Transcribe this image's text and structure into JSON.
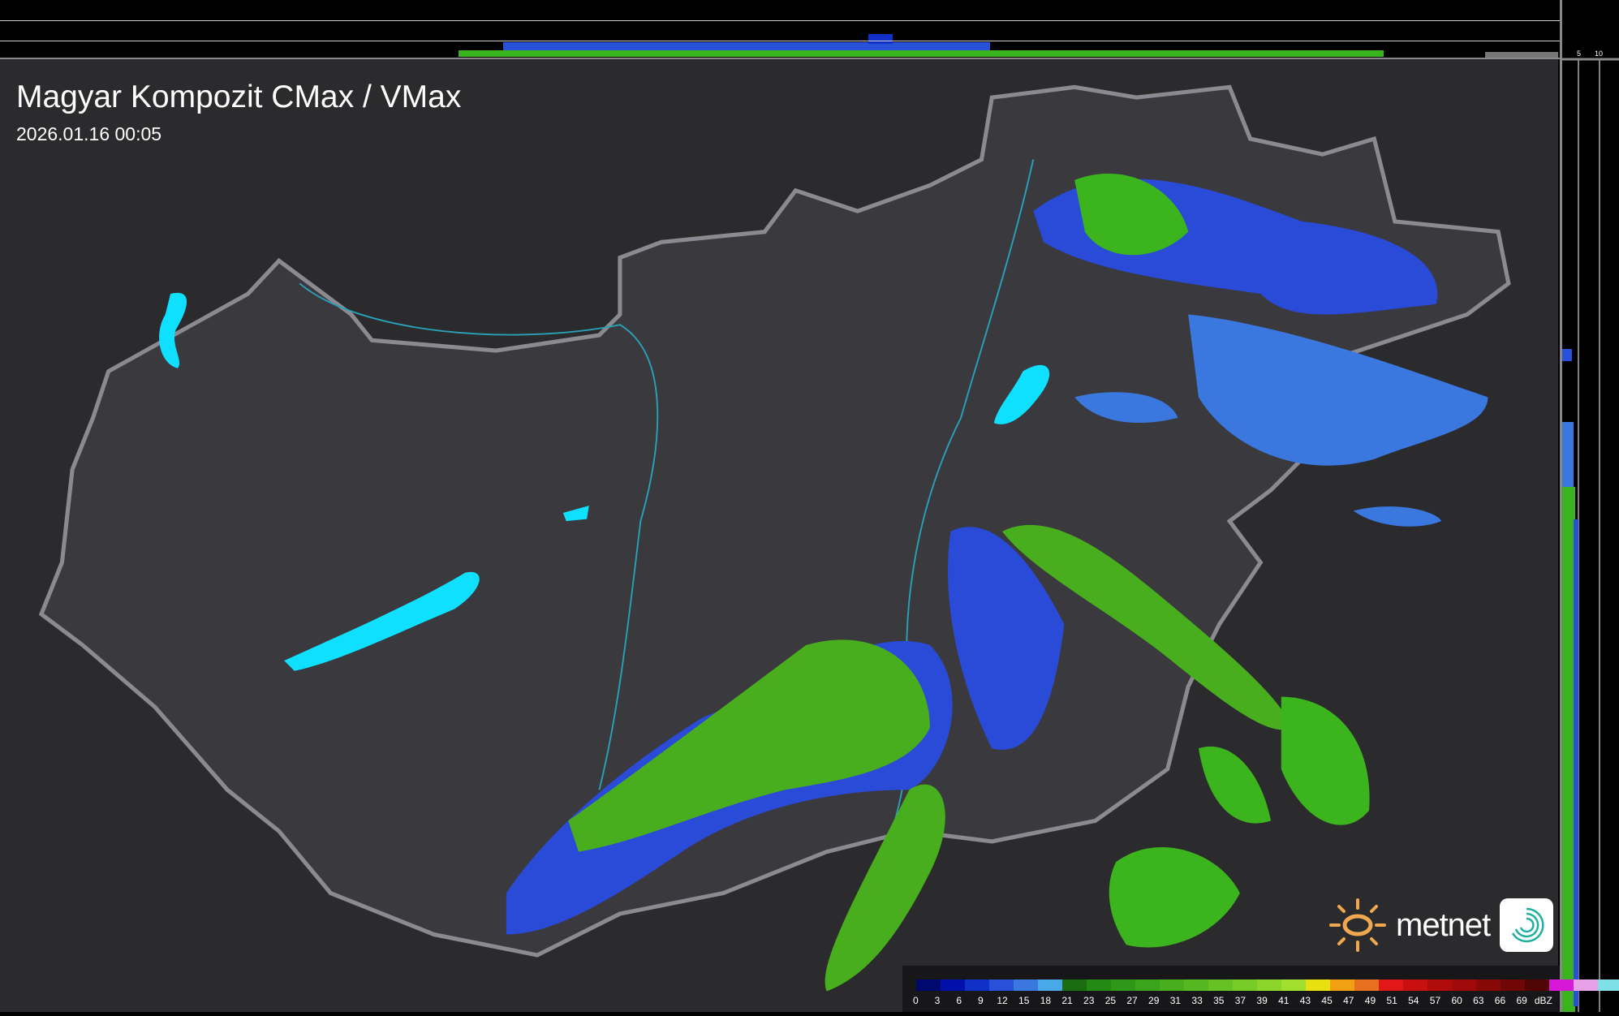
{
  "header": {
    "title": "Magyar Kompozit CMax / VMax",
    "timestamp": "2026.01.16 00:05"
  },
  "profile_ticks": {
    "top": [
      "10",
      "5"
    ],
    "right": [
      "5",
      "10"
    ]
  },
  "logo": {
    "brand": "metnet"
  },
  "legend": {
    "labels": [
      "0",
      "3",
      "6",
      "9",
      "12",
      "15",
      "18",
      "21",
      "23",
      "25",
      "27",
      "29",
      "31",
      "33",
      "35",
      "37",
      "39",
      "41",
      "43",
      "45",
      "47",
      "49",
      "51",
      "54",
      "57",
      "60",
      "63",
      "66",
      "69",
      "dBZ"
    ],
    "colors": [
      "#000a6e",
      "#0010a8",
      "#1030c8",
      "#2850d8",
      "#3a78e0",
      "#48a8e8",
      "#1a6e10",
      "#238a14",
      "#2e9818",
      "#3aa41c",
      "#48ae1e",
      "#56b820",
      "#66c224",
      "#78cc28",
      "#8cd62c",
      "#a2e030",
      "#e8e010",
      "#f0a010",
      "#e87020",
      "#e01818",
      "#c81010",
      "#b00c0c",
      "#a00a0a",
      "#880808",
      "#700606",
      "#500404",
      "#d818d8",
      "#e8a0e8",
      "#80e0e8"
    ],
    "unit": "dBZ"
  },
  "colors": {
    "background": "#2b2b2d",
    "country": "#3a3a3e",
    "border": "#8a8a90",
    "lakes": "#10e0ff",
    "light_precip": "#3a7ae8",
    "heavy_precip": "#3cb41e"
  }
}
